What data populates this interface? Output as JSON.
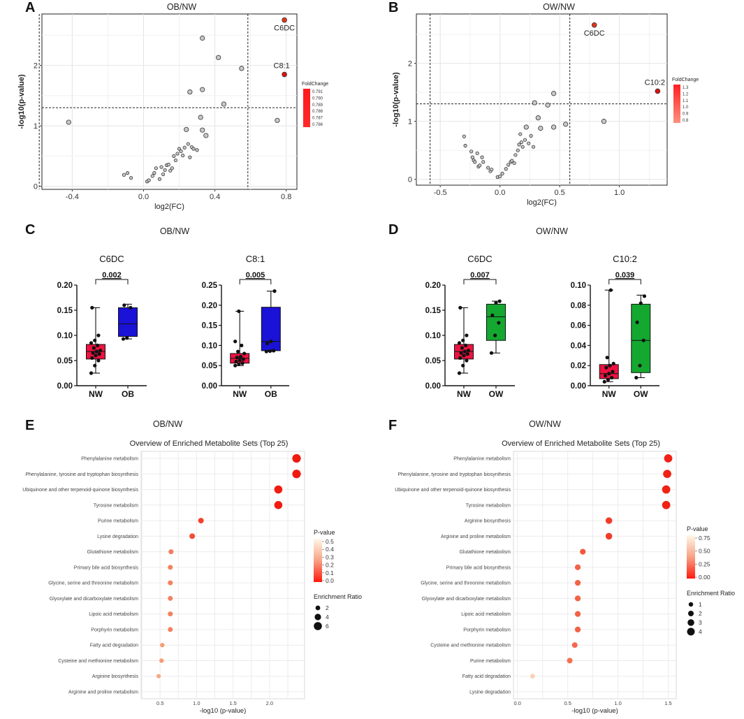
{
  "panel_letters": [
    "A",
    "B",
    "C",
    "D",
    "E",
    "F"
  ],
  "chart_data": [
    {
      "id": "A",
      "type": "scatter",
      "title": "OB/NW",
      "xlabel": "log2(FC)",
      "ylabel": "-log10(p-value)",
      "xlim": [
        -0.57,
        0.86
      ],
      "ylim": [
        -0.05,
        2.85
      ],
      "xticks": [
        -0.4,
        0.0,
        0.4,
        0.8
      ],
      "xtick_labels": [
        "-0.4",
        "0.0",
        "0.4",
        "0.8"
      ],
      "yticks": [
        0,
        1,
        2
      ],
      "ytick_labels": [
        "0",
        "1",
        "2"
      ],
      "vlines": [
        -0.585,
        0.585
      ],
      "hline": 1.301,
      "points": [
        [
          -0.42,
          1.06
        ],
        [
          -0.11,
          0.19
        ],
        [
          -0.09,
          0.22
        ],
        [
          -0.07,
          0.14
        ],
        [
          0.02,
          0.08
        ],
        [
          0.03,
          0.1
        ],
        [
          0.05,
          0.17
        ],
        [
          0.06,
          0.22
        ],
        [
          0.07,
          0.3
        ],
        [
          0.09,
          0.12
        ],
        [
          0.1,
          0.32
        ],
        [
          0.11,
          0.2
        ],
        [
          0.12,
          0.27
        ],
        [
          0.13,
          0.35
        ],
        [
          0.14,
          0.36
        ],
        [
          0.15,
          0.26
        ],
        [
          0.16,
          0.3
        ],
        [
          0.17,
          0.5
        ],
        [
          0.18,
          0.43
        ],
        [
          0.19,
          0.54
        ],
        [
          0.2,
          0.62
        ],
        [
          0.21,
          0.58
        ],
        [
          0.22,
          0.51
        ],
        [
          0.23,
          0.64
        ],
        [
          0.24,
          0.94
        ],
        [
          0.25,
          0.7
        ],
        [
          0.26,
          0.48
        ],
        [
          0.27,
          0.65
        ],
        [
          0.28,
          0.62
        ],
        [
          0.3,
          0.6
        ],
        [
          0.32,
          1.14
        ],
        [
          0.33,
          0.93
        ],
        [
          0.35,
          0.84
        ],
        [
          0.26,
          1.56
        ],
        [
          0.33,
          1.6
        ],
        [
          0.33,
          2.45
        ],
        [
          0.42,
          2.13
        ],
        [
          0.45,
          1.36
        ],
        [
          0.55,
          1.95
        ],
        [
          0.75,
          1.09
        ]
      ],
      "highlights": [
        {
          "label": "C6DC",
          "x": 0.79,
          "y": 2.75
        },
        {
          "label": "C8:1",
          "x": 0.79,
          "y": 1.85
        }
      ],
      "legend_title": "FoldChange",
      "legend_ticks": [
        "0.791",
        "0.790",
        "0.789",
        "0.788",
        "0.787",
        "0.786"
      ]
    },
    {
      "id": "B",
      "type": "scatter",
      "title": "OW/NW",
      "xlabel": "log2(FC)",
      "ylabel": "-log10(p-value)",
      "xlim": [
        -0.7,
        1.4
      ],
      "ylim": [
        -0.1,
        2.85
      ],
      "xticks": [
        -0.5,
        0.0,
        0.5,
        1.0
      ],
      "xtick_labels": [
        "-0.5",
        "0.0",
        "0.5",
        "1.0"
      ],
      "yticks": [
        0,
        1,
        2
      ],
      "ytick_labels": [
        "0",
        "1",
        "2"
      ],
      "vlines": [
        -0.585,
        0.585
      ],
      "hline": 1.301,
      "points": [
        [
          -0.3,
          0.74
        ],
        [
          -0.29,
          0.58
        ],
        [
          -0.24,
          0.48
        ],
        [
          -0.23,
          0.38
        ],
        [
          -0.22,
          0.33
        ],
        [
          -0.21,
          0.3
        ],
        [
          -0.19,
          0.45
        ],
        [
          -0.18,
          0.22
        ],
        [
          -0.17,
          0.24
        ],
        [
          -0.15,
          0.38
        ],
        [
          -0.14,
          0.3
        ],
        [
          -0.1,
          0.2
        ],
        [
          -0.08,
          0.14
        ],
        [
          -0.07,
          0.17
        ],
        [
          -0.02,
          0.04
        ],
        [
          0.0,
          0.05
        ],
        [
          0.02,
          0.1
        ],
        [
          0.05,
          0.18
        ],
        [
          0.07,
          0.25
        ],
        [
          0.09,
          0.3
        ],
        [
          0.1,
          0.32
        ],
        [
          0.12,
          0.28
        ],
        [
          0.13,
          0.42
        ],
        [
          0.15,
          0.5
        ],
        [
          0.16,
          0.6
        ],
        [
          0.17,
          0.78
        ],
        [
          0.18,
          0.64
        ],
        [
          0.19,
          0.56
        ],
        [
          0.21,
          0.68
        ],
        [
          0.22,
          0.9
        ],
        [
          0.24,
          0.62
        ],
        [
          0.26,
          0.75
        ],
        [
          0.28,
          0.56
        ],
        [
          0.29,
          1.32
        ],
        [
          0.32,
          1.06
        ],
        [
          0.34,
          0.88
        ],
        [
          0.4,
          1.28
        ],
        [
          0.45,
          1.48
        ],
        [
          0.45,
          0.9
        ],
        [
          0.55,
          0.95
        ],
        [
          0.87,
          1.0
        ]
      ],
      "highlights": [
        {
          "label": "C6DC",
          "x": 0.79,
          "y": 2.66
        },
        {
          "label": "C10:2",
          "x": 1.32,
          "y": 1.52
        }
      ],
      "legend_title": "FoldChange",
      "legend_ticks": [
        "1.3",
        "1.2",
        "1.1",
        "1.0",
        "0.9",
        "0.8"
      ]
    },
    {
      "id": "C",
      "type": "box",
      "title": "OB/NW",
      "metric": "C6DC",
      "categories": [
        "NW",
        "OB"
      ],
      "ylim": [
        0,
        0.2
      ],
      "yticks": [
        "0.00",
        "0.05",
        "0.10",
        "0.15",
        "0.20"
      ],
      "pvalue": "0.002",
      "groups": [
        {
          "name": "NW",
          "min": 0.025,
          "q1": 0.053,
          "median": 0.068,
          "q3": 0.082,
          "max": 0.155,
          "points": [
            0.025,
            0.04,
            0.05,
            0.055,
            0.06,
            0.063,
            0.065,
            0.068,
            0.07,
            0.075,
            0.08,
            0.085,
            0.09,
            0.1,
            0.155
          ]
        },
        {
          "name": "OB",
          "min": 0.093,
          "q1": 0.098,
          "median": 0.123,
          "q3": 0.155,
          "max": 0.162,
          "points": [
            0.093,
            0.095,
            0.155,
            0.16
          ]
        }
      ]
    },
    {
      "id": "C",
      "type": "box",
      "title": "OB/NW",
      "metric": "C8:1",
      "categories": [
        "NW",
        "OB"
      ],
      "ylim": [
        0,
        0.25
      ],
      "yticks": [
        "0.00",
        "0.05",
        "0.10",
        "0.15",
        "0.20",
        "0.25"
      ],
      "pvalue": "0.005",
      "groups": [
        {
          "name": "NW",
          "min": 0.05,
          "q1": 0.056,
          "median": 0.068,
          "q3": 0.08,
          "max": 0.185,
          "points": [
            0.05,
            0.053,
            0.056,
            0.06,
            0.063,
            0.066,
            0.07,
            0.072,
            0.08,
            0.085,
            0.1,
            0.11,
            0.185
          ]
        },
        {
          "name": "OB",
          "min": 0.085,
          "q1": 0.087,
          "median": 0.11,
          "q3": 0.195,
          "max": 0.235,
          "points": [
            0.085,
            0.086,
            0.087,
            0.105,
            0.11,
            0.235
          ]
        }
      ]
    },
    {
      "id": "D",
      "type": "box",
      "title": "OW/NW",
      "metric": "C6DC",
      "categories": [
        "NW",
        "OW"
      ],
      "ylim": [
        0,
        0.2
      ],
      "yticks": [
        "0.00",
        "0.05",
        "0.10",
        "0.15",
        "0.20"
      ],
      "pvalue": "0.007",
      "groups": [
        {
          "name": "NW",
          "min": 0.025,
          "q1": 0.053,
          "median": 0.068,
          "q3": 0.082,
          "max": 0.155,
          "points": [
            0.025,
            0.04,
            0.05,
            0.055,
            0.06,
            0.063,
            0.065,
            0.068,
            0.07,
            0.075,
            0.08,
            0.085,
            0.09,
            0.1,
            0.155
          ]
        },
        {
          "name": "OW",
          "min": 0.065,
          "q1": 0.09,
          "median": 0.137,
          "q3": 0.162,
          "max": 0.168,
          "points": [
            0.065,
            0.1,
            0.125,
            0.14,
            0.165,
            0.168
          ]
        }
      ]
    },
    {
      "id": "D",
      "type": "box",
      "title": "OW/NW",
      "metric": "C10:2",
      "categories": [
        "NW",
        "OW"
      ],
      "ylim": [
        0,
        0.1
      ],
      "yticks": [
        "0.00",
        "0.02",
        "0.04",
        "0.06",
        "0.08",
        "0.10"
      ],
      "pvalue": "0.039",
      "groups": [
        {
          "name": "NW",
          "min": 0.004,
          "q1": 0.007,
          "median": 0.012,
          "q3": 0.021,
          "max": 0.095,
          "points": [
            0.004,
            0.006,
            0.008,
            0.01,
            0.012,
            0.014,
            0.018,
            0.02,
            0.022,
            0.028,
            0.095
          ]
        },
        {
          "name": "OW",
          "min": 0.008,
          "q1": 0.013,
          "median": 0.045,
          "q3": 0.081,
          "max": 0.09,
          "points": [
            0.008,
            0.02,
            0.045,
            0.063,
            0.082,
            0.089
          ]
        }
      ]
    },
    {
      "id": "E",
      "type": "scatter",
      "title": "OB/NW",
      "subtitle": "Overview of Enriched Metabolite Sets (Top 25)",
      "xlabel": "-log10 (p-value)",
      "xlim": [
        0.24,
        2.48
      ],
      "xticks": [
        0.5,
        1.0,
        1.5,
        2.0
      ],
      "xtick_labels": [
        "0.5",
        "1.0",
        "1.5",
        "2.0"
      ],
      "categories": [
        "Phenylalanine metabolism",
        "Phenylalanine, tyrosine and tryptophan biosynthesis",
        "Ubiquinone and other terpenoid-quinone biosynthesis",
        "Tyrosine metabolism",
        "Purine metabolism",
        "Lysine degradation",
        "Glutathione metabolism",
        "Primary bile acid biosynthesis",
        "Glycine, serine and threonine metabolism",
        "Glyoxylate and dicarboxylate metabolism",
        "Lipoic acid metabolism",
        "Porphyrin metabolism",
        "Fatty acid degradation",
        "Cysteine and methionine metabolism",
        "Arginine biosynthesis",
        "Arginine and proline metabolism"
      ],
      "x": [
        2.37,
        2.37,
        2.12,
        2.12,
        1.06,
        0.94,
        0.65,
        0.64,
        0.64,
        0.64,
        0.64,
        0.64,
        0.53,
        0.52,
        0.48,
        null
      ],
      "pvalue": [
        0.004,
        0.004,
        0.008,
        0.008,
        0.087,
        0.115,
        0.22,
        0.23,
        0.23,
        0.23,
        0.23,
        0.23,
        0.3,
        0.3,
        0.33,
        null
      ],
      "enrichment_ratio": [
        6.5,
        6.5,
        6.0,
        6.0,
        3.0,
        3.0,
        2.2,
        2.2,
        2.2,
        2.2,
        2.2,
        2.2,
        1.7,
        1.7,
        1.5,
        null
      ],
      "colorbar_title": "P-value",
      "colorbar_ticks": [
        "0.5",
        "0.4",
        "0.3",
        "0.2",
        "0.1",
        "0.0"
      ],
      "colorbar_max": 0.55,
      "size_title": "Enrichment Ratio",
      "size_legend": [
        2,
        4,
        6
      ]
    },
    {
      "id": "F",
      "type": "scatter",
      "title": "OW/NW",
      "subtitle": "Overview of Enriched Metabolite Sets (Top 25)",
      "xlabel": "-log10 (p-value)",
      "xlim": [
        -0.04,
        1.58
      ],
      "xticks": [
        0.0,
        0.5,
        1.0,
        1.5
      ],
      "xtick_labels": [
        "0.0",
        "0.5",
        "1.0",
        "1.5"
      ],
      "categories": [
        "Phenylalanine metabolism",
        "Phenylalanine, tyrosine and tryptophan biosynthesis",
        "Ubiquinone and other terpenoid-quinone biosynthesis",
        "Tyrosine metabolism",
        "Arginine biosynthesis",
        "Arginine and proline metabolism",
        "Glutathione metabolism",
        "Primary bile acid biosynthesis",
        "Glycine, serine and threonine metabolism",
        "Glyoxylate and dicarboxylate metabolism",
        "Lipoic acid metabolism",
        "Porphyrin metabolism",
        "Cysteine and methionine metabolism",
        "Purine metabolism",
        "Fatty acid degradation",
        "Lysine degradation"
      ],
      "x": [
        1.5,
        1.49,
        1.48,
        1.48,
        0.91,
        0.91,
        0.65,
        0.6,
        0.6,
        0.6,
        0.6,
        0.6,
        0.57,
        0.52,
        0.15,
        null
      ],
      "pvalue": [
        0.032,
        0.032,
        0.033,
        0.033,
        0.12,
        0.12,
        0.22,
        0.25,
        0.25,
        0.25,
        0.25,
        0.25,
        0.27,
        0.3,
        0.7,
        null
      ],
      "enrichment_ratio": [
        4.5,
        4.5,
        4.5,
        4.5,
        3.0,
        3.0,
        2.2,
        2.2,
        2.2,
        2.2,
        2.2,
        2.2,
        2.0,
        2.0,
        1.2,
        null
      ],
      "colorbar_title": "P-value",
      "colorbar_ticks": [
        "0.75",
        "0.50",
        "0.25",
        "0.00"
      ],
      "colorbar_max": 0.85,
      "size_title": "Enrichment Ratio",
      "size_legend": [
        1,
        2,
        3,
        4
      ]
    }
  ]
}
